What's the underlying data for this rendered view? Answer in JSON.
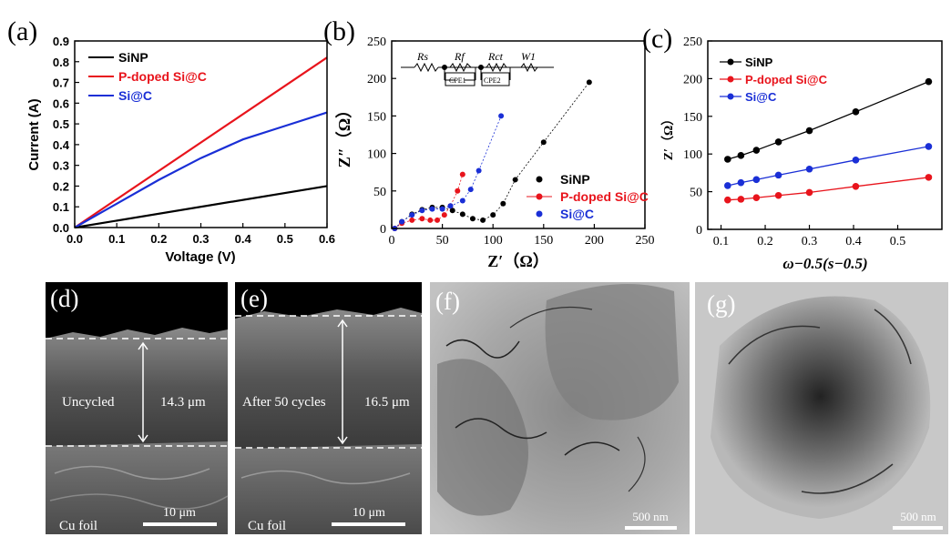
{
  "panels": {
    "a": {
      "label": "(a)"
    },
    "b": {
      "label": "(b)"
    },
    "c": {
      "label": "(c)"
    },
    "d": {
      "label": "(d)"
    },
    "e": {
      "label": "(e)"
    },
    "f": {
      "label": "(f)"
    },
    "g": {
      "label": "(g)"
    }
  },
  "colors": {
    "black": "#000000",
    "red": "#e8141c",
    "blue": "#1a2fd6"
  },
  "chart_data": [
    {
      "panel": "a",
      "type": "line",
      "xlabel": "Voltage (V)",
      "ylabel": "Current (A)",
      "xlim": [
        0,
        0.6
      ],
      "ylim": [
        0,
        0.9
      ],
      "xticks": [
        "0.0",
        "0.1",
        "0.2",
        "0.3",
        "0.4",
        "0.5",
        "0.6"
      ],
      "yticks": [
        "0.0",
        "0.1",
        "0.2",
        "0.3",
        "0.4",
        "0.5",
        "0.6",
        "0.7",
        "0.8",
        "0.9"
      ],
      "legend_position": "top-left",
      "series": [
        {
          "name": "SiNP",
          "color": "black",
          "x": [
            0,
            0.6
          ],
          "y": [
            0,
            0.2
          ]
        },
        {
          "name": "P-doped Si@C",
          "color": "red",
          "x": [
            0,
            0.6
          ],
          "y": [
            0,
            0.82
          ]
        },
        {
          "name": "Si@C",
          "color": "blue",
          "x": [
            0,
            0.1,
            0.2,
            0.3,
            0.4,
            0.5,
            0.6
          ],
          "y": [
            0,
            0.115,
            0.23,
            0.335,
            0.425,
            0.49,
            0.555
          ]
        }
      ]
    },
    {
      "panel": "b",
      "type": "scatter",
      "xlabel": "Z′（Ω）",
      "ylabel": "Z″（Ω）",
      "xlim": [
        0,
        250
      ],
      "ylim": [
        0,
        250
      ],
      "xticks": [
        "0",
        "50",
        "100",
        "150",
        "200",
        "250"
      ],
      "yticks": [
        "0",
        "50",
        "100",
        "150",
        "200",
        "250"
      ],
      "legend_position": "right",
      "circuit_labels": [
        "Rs",
        "Rf",
        "Rct",
        "W1",
        "CPE1",
        "CPE2"
      ],
      "series": [
        {
          "name": "SiNP",
          "color": "black",
          "x": [
            3,
            10,
            20,
            30,
            40,
            50,
            60,
            70,
            80,
            90,
            100,
            110,
            122,
            150,
            195
          ],
          "y": [
            0,
            9,
            19,
            25,
            28,
            28,
            24,
            19,
            13,
            11,
            18,
            33,
            65,
            115,
            195
          ]
        },
        {
          "name": "P-doped Si@C",
          "color": "red",
          "x": [
            3,
            10,
            20,
            30,
            38,
            45,
            52,
            58,
            65,
            70
          ],
          "y": [
            0,
            7,
            11,
            13,
            11,
            11,
            18,
            30,
            50,
            72
          ]
        },
        {
          "name": "Si@C",
          "color": "blue",
          "x": [
            3,
            10,
            20,
            30,
            40,
            50,
            58,
            70,
            78,
            86,
            108
          ],
          "y": [
            0,
            9,
            18,
            24,
            26,
            26,
            30,
            37,
            52,
            77,
            150
          ]
        }
      ]
    },
    {
      "panel": "c",
      "type": "line",
      "xlabel": "ω−0.5(s−0.5)",
      "ylabel": "Z′（Ω）",
      "xlim": [
        0.07,
        0.6
      ],
      "ylim": [
        0,
        250
      ],
      "xticks": [
        "0.1",
        "0.2",
        "0.3",
        "0.4",
        "0.5"
      ],
      "yticks": [
        "0",
        "50",
        "100",
        "150",
        "200",
        "250"
      ],
      "legend_position": "top-left",
      "series": [
        {
          "name": "SiNP",
          "color": "black",
          "x": [
            0.115,
            0.145,
            0.18,
            0.23,
            0.3,
            0.405,
            0.57
          ],
          "y": [
            93,
            98,
            105,
            116,
            131,
            156,
            196
          ]
        },
        {
          "name": "P-doped Si@C",
          "color": "red",
          "x": [
            0.115,
            0.145,
            0.18,
            0.23,
            0.3,
            0.405,
            0.57
          ],
          "y": [
            39,
            40,
            42,
            45,
            49,
            57,
            69
          ]
        },
        {
          "name": "Si@C",
          "color": "blue",
          "x": [
            0.115,
            0.145,
            0.18,
            0.23,
            0.3,
            0.405,
            0.57
          ],
          "y": [
            58,
            62,
            66,
            72,
            80,
            92,
            110
          ]
        }
      ]
    }
  ],
  "images": {
    "d": {
      "state_label": "Uncycled",
      "thickness": "14.3 μm",
      "substrate": "Cu foil",
      "scale": "10 μm"
    },
    "e": {
      "state_label": "After 50 cycles",
      "thickness": "16.5 μm",
      "substrate": "Cu foil",
      "scale": "10 μm"
    },
    "f": {
      "scale": "500 nm"
    },
    "g": {
      "scale": "500 nm"
    }
  }
}
